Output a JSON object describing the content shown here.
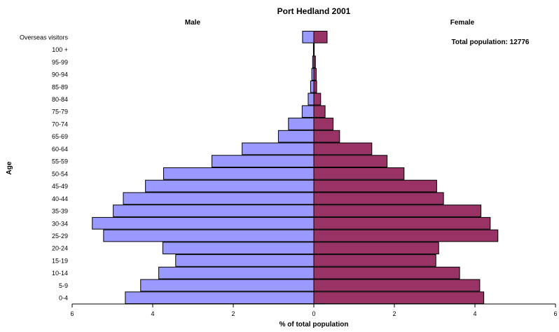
{
  "chart_data": {
    "type": "bar",
    "title": "Port Hedland 2001",
    "left_label": "Male",
    "right_label": "Female",
    "ylabel": "Age",
    "xlabel": "% of total population",
    "annotation": "Total population: 12776",
    "xlim": [
      -6,
      6
    ],
    "x_ticks": [
      -6,
      -4,
      -2,
      0,
      2,
      4,
      6
    ],
    "x_tick_labels": [
      "6",
      "4",
      "2",
      "0",
      "2",
      "4",
      "6"
    ],
    "categories": [
      "Overseas visitors",
      "100 +",
      "95-99",
      "90-94",
      "85-89",
      "80-84",
      "75-79",
      "70-74",
      "65-69",
      "60-64",
      "55-59",
      "50-54",
      "45-49",
      "40-44",
      "35-39",
      "30-34",
      "25-29",
      "20-24",
      "15-19",
      "10-14",
      "5-9",
      "0-4"
    ],
    "series": [
      {
        "name": "Male",
        "color": "#9999ff",
        "values": [
          0.28,
          0.01,
          0.03,
          0.05,
          0.08,
          0.14,
          0.29,
          0.63,
          0.88,
          1.78,
          2.53,
          3.73,
          4.18,
          4.73,
          4.98,
          5.5,
          5.22,
          3.75,
          3.43,
          3.85,
          4.3,
          4.68
        ]
      },
      {
        "name": "Female",
        "color": "#993366",
        "values": [
          0.33,
          0.01,
          0.04,
          0.06,
          0.07,
          0.17,
          0.28,
          0.48,
          0.64,
          1.44,
          1.82,
          2.24,
          3.05,
          3.22,
          4.15,
          4.38,
          4.57,
          3.1,
          3.03,
          3.62,
          4.12,
          4.22
        ]
      }
    ]
  }
}
